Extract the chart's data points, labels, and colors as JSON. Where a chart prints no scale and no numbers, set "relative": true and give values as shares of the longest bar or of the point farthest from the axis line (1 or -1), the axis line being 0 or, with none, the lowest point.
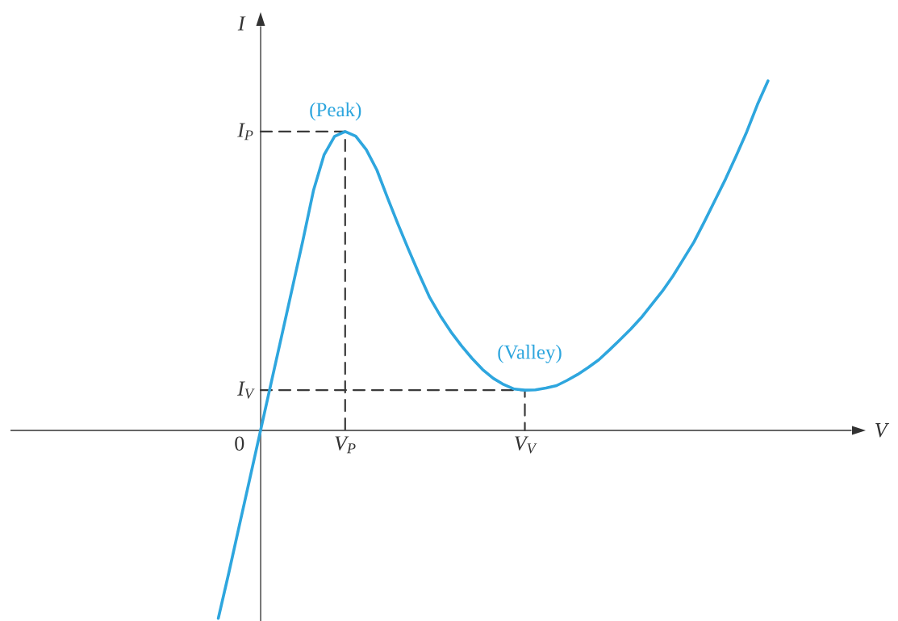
{
  "chart_data": {
    "type": "line",
    "relative": true,
    "xlabel": "V",
    "ylabel": "I",
    "categories": [
      null,
      null,
      "0",
      null,
      null,
      null,
      null,
      null,
      null,
      null,
      null,
      null,
      "V$_{P}$",
      null,
      null,
      null,
      null,
      null,
      null,
      null,
      null,
      null,
      null,
      null,
      null,
      null,
      null,
      null,
      null,
      "V$_{V}$",
      null,
      null,
      null,
      null,
      null,
      null,
      null,
      null,
      null,
      null,
      null,
      null,
      null,
      null,
      null,
      null,
      null,
      null,
      null,
      null,
      null,
      null,
      null
    ],
    "marker": "none",
    "line_style": "solid",
    "series": [
      {
        "name": "I$_{P}$",
        "type": "step",
        "color": "#3a3a3a",
        "line_style": "dashed",
        "values": [
          null,
          null,
          null,
          null,
          0.855,
          0.855,
          0.855,
          0.855,
          0.855,
          0.855,
          0.855,
          0.855,
          0,
          null,
          null,
          null,
          null,
          null,
          null,
          null,
          null,
          null,
          null,
          null,
          null,
          null,
          null,
          null,
          null,
          null,
          null,
          null,
          null,
          null,
          null,
          null,
          null,
          null,
          null,
          null,
          null,
          null,
          null,
          null,
          null,
          null,
          null,
          null,
          null,
          null,
          null,
          null,
          null
        ]
      },
      {
        "name": "I$_{V}$",
        "type": "step",
        "color": "#3a3a3a",
        "line_style": "dashed",
        "values": [
          null,
          null,
          null,
          null,
          0.115,
          0.115,
          0.115,
          0.115,
          0.115,
          0.115,
          0.115,
          0.115,
          0.115,
          0.115,
          0.115,
          0.115,
          0.115,
          0.115,
          0.115,
          0.115,
          0.115,
          0.115,
          0.115,
          0.115,
          0.115,
          0.115,
          0.115,
          0.115,
          0.115,
          0,
          null,
          null,
          null,
          null,
          null,
          null,
          null,
          null,
          null,
          null,
          null,
          null,
          null,
          null,
          null,
          null,
          null,
          null,
          null,
          null,
          null,
          null,
          null
        ]
      },
      {
        "color": "#2ea6de",
        "values": [
          -0.538,
          -0.407,
          -0.271,
          -0.136,
          0,
          0.136,
          0.271,
          0.407,
          0.543,
          0.686,
          0.788,
          0.841,
          0.855,
          0.842,
          0.803,
          0.745,
          0.666,
          0.59,
          0.517,
          0.447,
          0.38,
          0.328,
          0.282,
          0.242,
          0.206,
          0.174,
          0.149,
          0.131,
          0.118,
          0.115,
          0.116,
          0.121,
          0.128,
          0.143,
          0.16,
          0.18,
          0.202,
          0.23,
          0.259,
          0.289,
          0.322,
          0.36,
          0.398,
          0.441,
          0.49,
          0.539,
          0.598,
          0.659,
          0.72,
          0.786,
          0.855,
          0.932,
          1
        ]
      }
    ],
    "annotations": [
      {
        "text": "(Peak)",
        "x": "V$_{P}$",
        "y": 0.855
      },
      {
        "text": "(Valley)",
        "x": "V$_{V}$",
        "y": 0.115
      }
    ]
  }
}
